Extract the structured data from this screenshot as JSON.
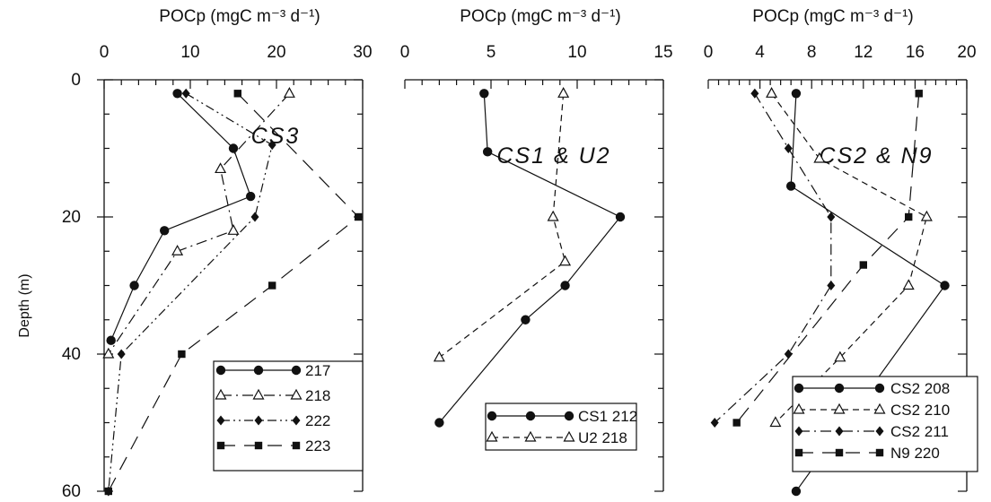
{
  "chart_data": [
    {
      "type": "line",
      "panel_label": "CS3",
      "title": "POCp (mgC m⁻³ d⁻¹)",
      "xlabel": "POCp (mgC m⁻³ d⁻¹)",
      "ylabel": "Depth (m)",
      "xlim": [
        0,
        30
      ],
      "xticks": [
        0,
        10,
        20,
        30
      ],
      "ylim": [
        0,
        60
      ],
      "yticks": [
        0,
        20,
        40,
        60
      ],
      "y_inverted": true,
      "series": [
        {
          "name": "217",
          "marker": "circle",
          "dash": "solid",
          "points": [
            [
              8.5,
              2
            ],
            [
              15,
              10
            ],
            [
              17,
              17
            ],
            [
              7,
              22
            ],
            [
              3.5,
              30
            ],
            [
              0.8,
              38
            ]
          ]
        },
        {
          "name": "218",
          "marker": "triangle",
          "dash": "dashdot",
          "points": [
            [
              21.5,
              2
            ],
            [
              13.5,
              13
            ],
            [
              15,
              22
            ],
            [
              8.5,
              25
            ],
            [
              0.5,
              40
            ]
          ]
        },
        {
          "name": "222",
          "marker": "diamond",
          "dash": "dashdotdot",
          "points": [
            [
              9.5,
              2
            ],
            [
              19.5,
              9.5
            ],
            [
              17.5,
              20
            ],
            [
              2,
              40
            ],
            [
              0.5,
              60
            ]
          ]
        },
        {
          "name": "223",
          "marker": "square",
          "dash": "longdash",
          "points": [
            [
              15.5,
              2
            ],
            [
              29.5,
              20
            ],
            [
              19.5,
              30
            ],
            [
              9,
              40
            ],
            [
              0.5,
              60
            ]
          ]
        }
      ]
    },
    {
      "type": "line",
      "panel_label": "CS1 & U2",
      "title": "POCp (mgC m⁻³ d⁻¹)",
      "xlabel": "POCp (mgC m⁻³ d⁻¹)",
      "ylabel": "",
      "xlim": [
        0,
        15
      ],
      "xticks": [
        0,
        5,
        10,
        15
      ],
      "ylim": [
        0,
        60
      ],
      "y_inverted": true,
      "series": [
        {
          "name": "CS1 212",
          "marker": "circle",
          "dash": "solid",
          "points": [
            [
              4.6,
              2
            ],
            [
              4.8,
              10.5
            ],
            [
              12.5,
              20
            ],
            [
              9.3,
              30
            ],
            [
              7,
              35
            ],
            [
              2,
              50
            ]
          ]
        },
        {
          "name": "U2 218",
          "marker": "triangle",
          "dash": "dashed",
          "points": [
            [
              9.2,
              2
            ],
            [
              8.6,
              20
            ],
            [
              9.3,
              26.5
            ],
            [
              2,
              40.5
            ]
          ]
        }
      ]
    },
    {
      "type": "line",
      "panel_label": "CS2 & N9",
      "title": "POCp (mgC m⁻³ d⁻¹)",
      "xlabel": "POCp (mgC m⁻³ d⁻¹)",
      "ylabel": "",
      "xlim": [
        0,
        20
      ],
      "xticks": [
        0,
        4,
        8,
        12,
        16,
        20
      ],
      "ylim": [
        0,
        60
      ],
      "y_inverted": true,
      "series": [
        {
          "name": "CS2 208",
          "marker": "circle",
          "dash": "solid",
          "points": [
            [
              6.8,
              2
            ],
            [
              6.4,
              15.5
            ],
            [
              18.3,
              30
            ],
            [
              6.8,
              60
            ]
          ]
        },
        {
          "name": "CS2 210",
          "marker": "triangle",
          "dash": "dashed",
          "points": [
            [
              4.9,
              2
            ],
            [
              8.6,
              11.5
            ],
            [
              16.9,
              20
            ],
            [
              15.5,
              30
            ],
            [
              10.2,
              40.5
            ],
            [
              5.2,
              50
            ]
          ]
        },
        {
          "name": "CS2 211",
          "marker": "diamond",
          "dash": "dashdot",
          "points": [
            [
              3.6,
              2
            ],
            [
              6.2,
              10
            ],
            [
              9.5,
              20
            ],
            [
              9.5,
              30
            ],
            [
              6.2,
              40
            ],
            [
              0.5,
              50
            ]
          ]
        },
        {
          "name": "N9 220",
          "marker": "square",
          "dash": "longdash",
          "points": [
            [
              16.3,
              2
            ],
            [
              15.5,
              20
            ],
            [
              12,
              27
            ],
            [
              2.2,
              50
            ]
          ]
        }
      ]
    }
  ],
  "colors": {
    "ink": "#111111",
    "background": "#ffffff"
  }
}
